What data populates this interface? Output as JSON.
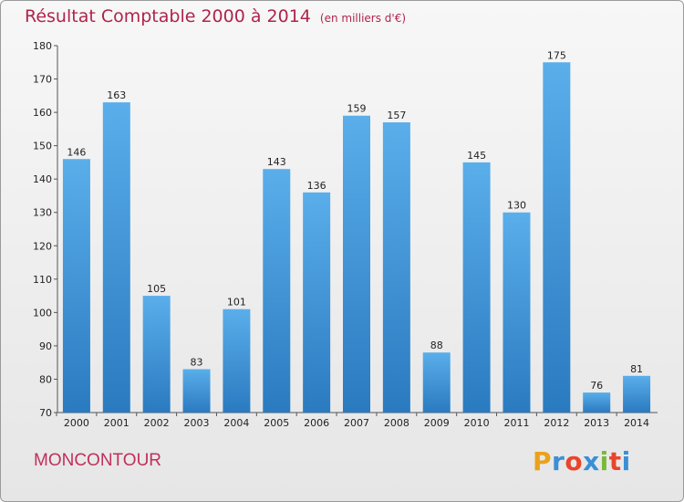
{
  "header": {
    "title": "Résultat Comptable 2000 à 2014",
    "subtitle": "(en milliers d'€)"
  },
  "footer": {
    "place": "MONCONTOUR",
    "logo_text": "Proxiti",
    "logo_colors": [
      "#e9a21a",
      "#3a8fd6",
      "#e9452b",
      "#3a8fd6",
      "#7ab83a",
      "#e9452b",
      "#3a8fd6"
    ]
  },
  "chart_data": {
    "type": "bar",
    "title": "Résultat Comptable 2000 à 2014",
    "subtitle": "(en milliers d'€)",
    "xlabel": "",
    "ylabel": "",
    "categories": [
      "2000",
      "2001",
      "2002",
      "2003",
      "2004",
      "2005",
      "2006",
      "2007",
      "2008",
      "2009",
      "2010",
      "2011",
      "2012",
      "2013",
      "2014"
    ],
    "values": [
      146,
      163,
      105,
      83,
      101,
      143,
      136,
      159,
      157,
      88,
      145,
      130,
      175,
      76,
      81
    ],
    "ylim": [
      70,
      180
    ],
    "yticks": [
      70,
      80,
      90,
      100,
      110,
      120,
      130,
      140,
      150,
      160,
      170,
      180
    ],
    "grid": false,
    "bar_color_top": "#5aaeea",
    "bar_color_bottom": "#2a7ac0"
  }
}
